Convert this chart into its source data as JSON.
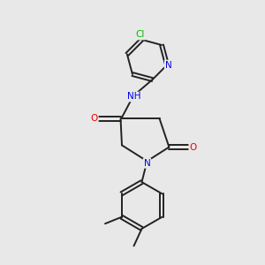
{
  "bg_color": "#e8e8e8",
  "bond_color": "#222222",
  "bond_width": 1.4,
  "atom_colors": {
    "N": "#0000ee",
    "O": "#ee0000",
    "Cl": "#00bb00"
  },
  "font_size": 7.0
}
